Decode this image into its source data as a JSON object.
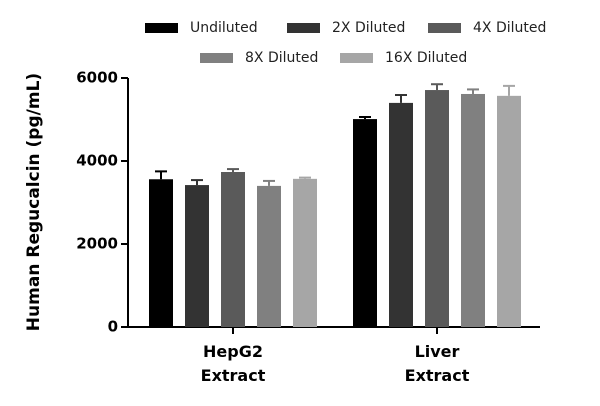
{
  "chart_data": {
    "type": "bar",
    "y_label": "Human Regucalcin (pg/mL)",
    "categories": [
      "HepG2 Extract",
      "Liver Extract"
    ],
    "series": [
      {
        "name": "Undiluted",
        "color": "#000000",
        "values": [
          3560,
          5010
        ],
        "errors": [
          190,
          50
        ]
      },
      {
        "name": "2X Diluted",
        "color": "#333333",
        "values": [
          3420,
          5400
        ],
        "errors": [
          120,
          190
        ]
      },
      {
        "name": "4X Diluted",
        "color": "#5a5a5a",
        "values": [
          3735,
          5710
        ],
        "errors": [
          70,
          140
        ]
      },
      {
        "name": "8X Diluted",
        "color": "#808080",
        "values": [
          3400,
          5615
        ],
        "errors": [
          120,
          110
        ]
      },
      {
        "name": "16X Diluted",
        "color": "#a6a6a6",
        "values": [
          3570,
          5570
        ],
        "errors": [
          30,
          240
        ]
      }
    ],
    "ylim": [
      0,
      6000
    ],
    "yticks": [
      0,
      2000,
      4000,
      6000
    ],
    "legend": "top"
  }
}
